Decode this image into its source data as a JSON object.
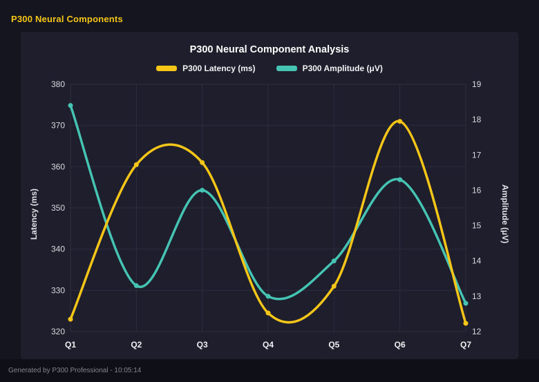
{
  "header": {
    "title": "P300 Neural Components"
  },
  "footer": {
    "text": "Generated by P300 Professional - 10:05:14"
  },
  "colors": {
    "background": "#15151f",
    "panel": "#1e1e2c",
    "footer_bar": "#0f0f17",
    "header_text": "#f5c518",
    "title_text": "#ffffff",
    "grid": "#2d2d3d",
    "tick_text": "#d9d9df",
    "latency_series": "#f5c518",
    "amplitude_series": "#45c4b4"
  },
  "chart_data": {
    "type": "line",
    "title": "P300 Neural Component Analysis",
    "categories": [
      "Q1",
      "Q2",
      "Q3",
      "Q4",
      "Q5",
      "Q6",
      "Q7"
    ],
    "series": [
      {
        "name": "P300 Latency (ms)",
        "axis": "left",
        "color": "#f5c518",
        "values": [
          323,
          360.5,
          361,
          324.5,
          331,
          371,
          322
        ]
      },
      {
        "name": "P300 Amplitude (μV)",
        "axis": "right",
        "color": "#45c4b4",
        "values": [
          18.4,
          13.3,
          16.0,
          13.0,
          14.0,
          16.3,
          12.8
        ]
      }
    ],
    "left_axis": {
      "label": "Latency (ms)",
      "min": 320,
      "max": 380,
      "ticks": [
        320,
        330,
        340,
        350,
        360,
        370,
        380
      ]
    },
    "right_axis": {
      "label": "Amplitude (μV)",
      "min": 12,
      "max": 19,
      "ticks": [
        12,
        13,
        14,
        15,
        16,
        17,
        18,
        19
      ]
    },
    "grid": true,
    "legend_position": "top",
    "line_style": "smooth"
  }
}
